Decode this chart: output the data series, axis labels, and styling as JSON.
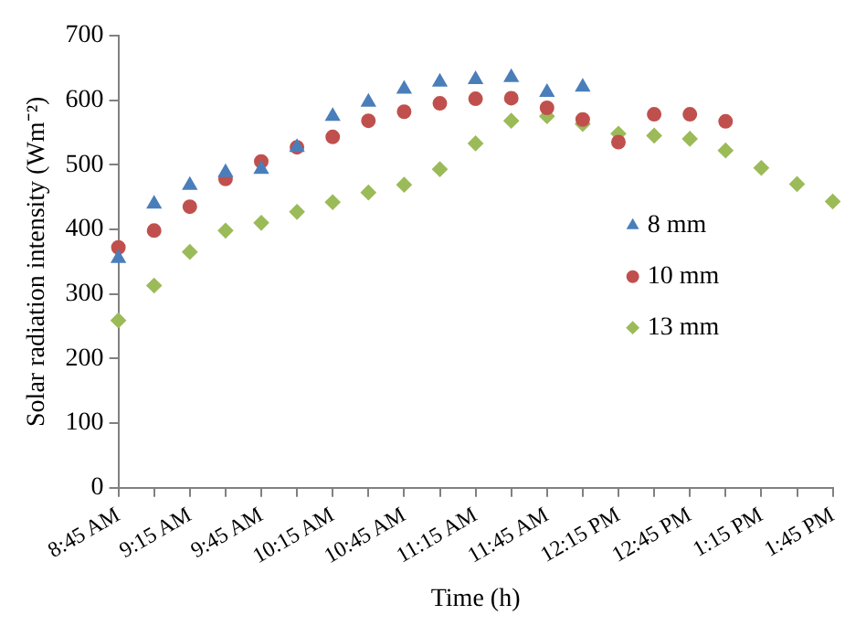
{
  "chart_data": {
    "type": "scatter",
    "xlabel": "Time (h)",
    "ylabel": "Solar radiation intensity (Wm⁻²)",
    "categories": [
      "8:45 AM",
      null,
      "9:15 AM",
      null,
      "9:45 AM",
      null,
      "10:15 AM",
      null,
      "10:45 AM",
      null,
      "11:15 AM",
      null,
      "11:45 AM",
      null,
      "12:15 PM",
      null,
      "12:45 PM",
      null,
      "1:15 PM",
      null,
      "1:45 PM"
    ],
    "series": [
      {
        "name": "8 mm",
        "color": "#4a7ebb",
        "marker": "triangle",
        "values": [
          355,
          439,
          468,
          488,
          493,
          527,
          575,
          597,
          617,
          628,
          632,
          635,
          612,
          620,
          null,
          null,
          null,
          null,
          null,
          null,
          null
        ]
      },
      {
        "name": "10 mm",
        "color": "#c0504d",
        "marker": "circle",
        "values": [
          372,
          398,
          435,
          478,
          505,
          527,
          543,
          568,
          582,
          595,
          602,
          603,
          588,
          570,
          535,
          578,
          578,
          567,
          null,
          null,
          null
        ]
      },
      {
        "name": "13 mm",
        "color": "#9bbb59",
        "marker": "diamond",
        "values": [
          259,
          313,
          365,
          398,
          410,
          427,
          442,
          457,
          469,
          493,
          533,
          568,
          575,
          563,
          548,
          545,
          540,
          522,
          495,
          470,
          443
        ]
      }
    ],
    "ylim": [
      0,
      700
    ],
    "yticks": [
      0,
      100,
      200,
      300,
      400,
      500,
      600,
      700
    ],
    "grid": false,
    "legend": "right"
  }
}
